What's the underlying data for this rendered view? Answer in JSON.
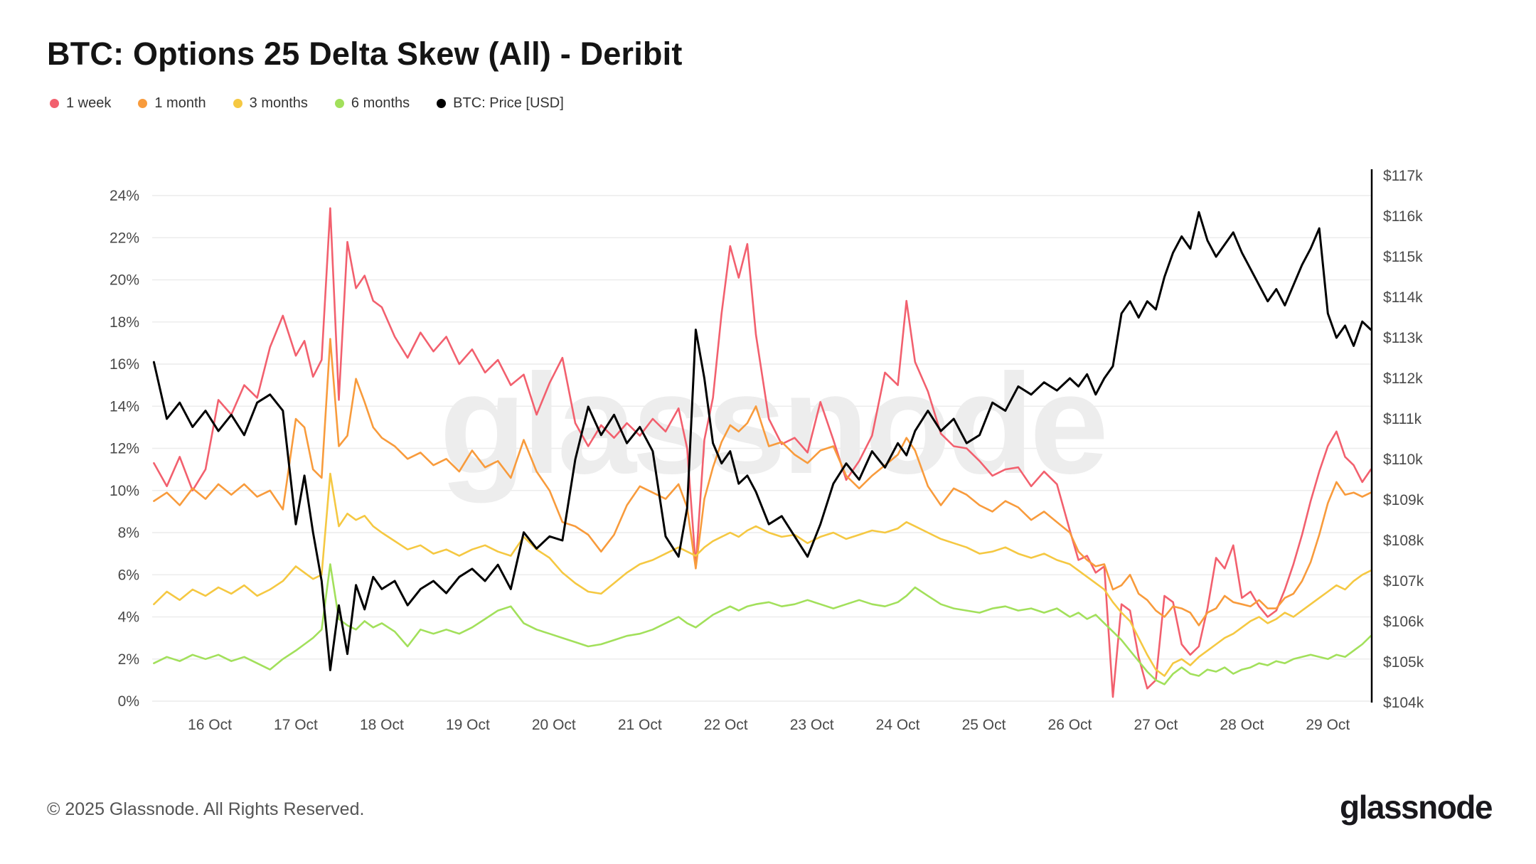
{
  "header": {
    "title": "BTC: Options 25 Delta Skew (All) - Deribit"
  },
  "legend": [
    {
      "label": "1 week",
      "color": "#F2606E"
    },
    {
      "label": "1 month",
      "color": "#F89B3C"
    },
    {
      "label": "3 months",
      "color": "#F5C842"
    },
    {
      "label": "6 months",
      "color": "#A2E05B"
    },
    {
      "label": "BTC: Price [USD]",
      "color": "#000000"
    }
  ],
  "watermark": "glassnode",
  "footer": {
    "copyright": "© 2025 Glassnode. All Rights Reserved.",
    "brand": "glassnode"
  },
  "chart_data": {
    "type": "line",
    "title": "BTC: Options 25 Delta Skew (All) - Deribit",
    "x_unit": "date (October 2025, fractional days)",
    "x_tick_days": [
      16,
      17,
      18,
      19,
      20,
      21,
      22,
      23,
      24,
      25,
      26,
      27,
      28,
      29
    ],
    "x_tick_labels": [
      "16 Oct",
      "17 Oct",
      "18 Oct",
      "19 Oct",
      "20 Oct",
      "21 Oct",
      "22 Oct",
      "23 Oct",
      "24 Oct",
      "25 Oct",
      "26 Oct",
      "27 Oct",
      "28 Oct",
      "29 Oct"
    ],
    "left_axis": {
      "min": 0,
      "max": 24,
      "step": 2,
      "unit": "%",
      "labels": [
        "0%",
        "2%",
        "4%",
        "6%",
        "8%",
        "10%",
        "12%",
        "14%",
        "16%",
        "18%",
        "20%",
        "22%",
        "24%"
      ]
    },
    "right_axis": {
      "min": 104,
      "max": 117,
      "step": 1,
      "unit": "$k",
      "labels": [
        "$104k",
        "$105k",
        "$106k",
        "$107k",
        "$108k",
        "$109k",
        "$110k",
        "$111k",
        "$112k",
        "$113k",
        "$114k",
        "$115k",
        "$116k",
        "$117k"
      ]
    },
    "grid": "horizontal-only",
    "legend_position": "top-left",
    "x": [
      15.35,
      15.5,
      15.65,
      15.8,
      15.95,
      16.1,
      16.25,
      16.4,
      16.55,
      16.7,
      16.85,
      17.0,
      17.1,
      17.2,
      17.3,
      17.4,
      17.5,
      17.6,
      17.7,
      17.8,
      17.9,
      18.0,
      18.15,
      18.3,
      18.45,
      18.6,
      18.75,
      18.9,
      19.05,
      19.2,
      19.35,
      19.5,
      19.65,
      19.8,
      19.95,
      20.1,
      20.25,
      20.4,
      20.55,
      20.7,
      20.85,
      21.0,
      21.15,
      21.3,
      21.45,
      21.55,
      21.65,
      21.75,
      21.85,
      21.95,
      22.05,
      22.15,
      22.25,
      22.35,
      22.5,
      22.65,
      22.8,
      22.95,
      23.1,
      23.25,
      23.4,
      23.55,
      23.7,
      23.85,
      24.0,
      24.1,
      24.2,
      24.35,
      24.5,
      24.65,
      24.8,
      24.95,
      25.1,
      25.25,
      25.4,
      25.55,
      25.7,
      25.85,
      26.0,
      26.1,
      26.2,
      26.3,
      26.4,
      26.5,
      26.6,
      26.7,
      26.8,
      26.9,
      27.0,
      27.1,
      27.2,
      27.3,
      27.4,
      27.5,
      27.6,
      27.7,
      27.8,
      27.9,
      28.0,
      28.1,
      28.2,
      28.3,
      28.4,
      28.5,
      28.6,
      28.7,
      28.8,
      28.9,
      29.0,
      29.1,
      29.2,
      29.3,
      29.4,
      29.5
    ],
    "series": [
      {
        "name": "1 week",
        "color": "#F2606E",
        "axis": "left",
        "unit": "%",
        "values": [
          11.3,
          10.2,
          11.6,
          10.0,
          11.0,
          14.3,
          13.6,
          15.0,
          14.4,
          16.8,
          18.3,
          16.4,
          17.1,
          15.4,
          16.2,
          23.4,
          14.3,
          21.8,
          19.6,
          20.2,
          19.0,
          18.7,
          17.3,
          16.3,
          17.5,
          16.6,
          17.3,
          16.0,
          16.7,
          15.6,
          16.2,
          15.0,
          15.5,
          13.6,
          15.1,
          16.3,
          13.2,
          12.1,
          13.1,
          12.5,
          13.2,
          12.6,
          13.4,
          12.8,
          13.9,
          12.0,
          6.4,
          12.4,
          14.4,
          18.4,
          21.6,
          20.1,
          21.7,
          17.4,
          13.4,
          12.2,
          12.5,
          11.8,
          14.2,
          12.4,
          10.5,
          11.4,
          12.6,
          15.6,
          15.0,
          19.0,
          16.1,
          14.7,
          12.7,
          12.1,
          12.0,
          11.4,
          10.7,
          11.0,
          11.1,
          10.2,
          10.9,
          10.3,
          8.1,
          6.7,
          6.9,
          6.1,
          6.4,
          0.2,
          4.6,
          4.3,
          2.1,
          0.6,
          1.0,
          5.0,
          4.7,
          2.7,
          2.2,
          2.6,
          4.4,
          6.8,
          6.3,
          7.4,
          4.9,
          5.2,
          4.5,
          4.0,
          4.3,
          5.3,
          6.5,
          7.9,
          9.5,
          10.9,
          12.1,
          12.8,
          11.6,
          11.2,
          10.4,
          11.0
        ]
      },
      {
        "name": "1 month",
        "color": "#F89B3C",
        "axis": "left",
        "unit": "%",
        "values": [
          9.5,
          9.9,
          9.3,
          10.1,
          9.6,
          10.3,
          9.8,
          10.3,
          9.7,
          10.0,
          9.1,
          13.4,
          13.0,
          11.0,
          10.6,
          17.2,
          12.1,
          12.6,
          15.3,
          14.2,
          13.0,
          12.5,
          12.1,
          11.5,
          11.8,
          11.2,
          11.5,
          10.9,
          11.9,
          11.1,
          11.4,
          10.6,
          12.4,
          10.9,
          10.0,
          8.5,
          8.3,
          7.9,
          7.1,
          7.9,
          9.3,
          10.2,
          9.9,
          9.6,
          10.3,
          9.2,
          6.3,
          9.6,
          11.1,
          12.3,
          13.1,
          12.8,
          13.2,
          14.0,
          12.1,
          12.3,
          11.7,
          11.3,
          11.9,
          12.1,
          10.7,
          10.1,
          10.7,
          11.2,
          11.7,
          12.5,
          11.9,
          10.2,
          9.3,
          10.1,
          9.8,
          9.3,
          9.0,
          9.5,
          9.2,
          8.6,
          9.0,
          8.5,
          8.0,
          7.1,
          6.7,
          6.4,
          6.5,
          5.3,
          5.5,
          6.0,
          5.1,
          4.8,
          4.3,
          4.0,
          4.5,
          4.4,
          4.2,
          3.6,
          4.2,
          4.4,
          5.0,
          4.7,
          4.6,
          4.5,
          4.8,
          4.4,
          4.4,
          4.9,
          5.1,
          5.7,
          6.6,
          7.9,
          9.4,
          10.4,
          9.8,
          9.9,
          9.7,
          9.9
        ]
      },
      {
        "name": "3 months",
        "color": "#F5C842",
        "axis": "left",
        "unit": "%",
        "values": [
          4.6,
          5.2,
          4.8,
          5.3,
          5.0,
          5.4,
          5.1,
          5.5,
          5.0,
          5.3,
          5.7,
          6.4,
          6.1,
          5.8,
          6.0,
          10.8,
          8.3,
          8.9,
          8.6,
          8.8,
          8.3,
          8.0,
          7.6,
          7.2,
          7.4,
          7.0,
          7.2,
          6.9,
          7.2,
          7.4,
          7.1,
          6.9,
          7.8,
          7.2,
          6.8,
          6.1,
          5.6,
          5.2,
          5.1,
          5.6,
          6.1,
          6.5,
          6.7,
          7.0,
          7.3,
          7.1,
          6.9,
          7.3,
          7.6,
          7.8,
          8.0,
          7.8,
          8.1,
          8.3,
          8.0,
          7.8,
          7.9,
          7.5,
          7.8,
          8.0,
          7.7,
          7.9,
          8.1,
          8.0,
          8.2,
          8.5,
          8.3,
          8.0,
          7.7,
          7.5,
          7.3,
          7.0,
          7.1,
          7.3,
          7.0,
          6.8,
          7.0,
          6.7,
          6.5,
          6.2,
          5.9,
          5.6,
          5.3,
          4.7,
          4.2,
          3.8,
          3.0,
          2.2,
          1.5,
          1.2,
          1.8,
          2.0,
          1.7,
          2.1,
          2.4,
          2.7,
          3.0,
          3.2,
          3.5,
          3.8,
          4.0,
          3.7,
          3.9,
          4.2,
          4.0,
          4.3,
          4.6,
          4.9,
          5.2,
          5.5,
          5.3,
          5.7,
          6.0,
          6.2
        ]
      },
      {
        "name": "6 months",
        "color": "#A2E05B",
        "axis": "left",
        "unit": "%",
        "values": [
          1.8,
          2.1,
          1.9,
          2.2,
          2.0,
          2.2,
          1.9,
          2.1,
          1.8,
          1.5,
          2.0,
          2.4,
          2.7,
          3.0,
          3.4,
          6.5,
          3.9,
          3.6,
          3.4,
          3.8,
          3.5,
          3.7,
          3.3,
          2.6,
          3.4,
          3.2,
          3.4,
          3.2,
          3.5,
          3.9,
          4.3,
          4.5,
          3.7,
          3.4,
          3.2,
          3.0,
          2.8,
          2.6,
          2.7,
          2.9,
          3.1,
          3.2,
          3.4,
          3.7,
          4.0,
          3.7,
          3.5,
          3.8,
          4.1,
          4.3,
          4.5,
          4.3,
          4.5,
          4.6,
          4.7,
          4.5,
          4.6,
          4.8,
          4.6,
          4.4,
          4.6,
          4.8,
          4.6,
          4.5,
          4.7,
          5.0,
          5.4,
          5.0,
          4.6,
          4.4,
          4.3,
          4.2,
          4.4,
          4.5,
          4.3,
          4.4,
          4.2,
          4.4,
          4.0,
          4.2,
          3.9,
          4.1,
          3.7,
          3.3,
          2.9,
          2.4,
          1.9,
          1.4,
          1.0,
          0.8,
          1.3,
          1.6,
          1.3,
          1.2,
          1.5,
          1.4,
          1.6,
          1.3,
          1.5,
          1.6,
          1.8,
          1.7,
          1.9,
          1.8,
          2.0,
          2.1,
          2.2,
          2.1,
          2.0,
          2.2,
          2.1,
          2.4,
          2.7,
          3.1
        ]
      },
      {
        "name": "BTC: Price [USD]",
        "color": "#000000",
        "axis": "right",
        "unit": "$k",
        "values": [
          112.4,
          111.0,
          111.4,
          110.8,
          111.2,
          110.7,
          111.1,
          110.6,
          111.4,
          111.6,
          111.2,
          108.4,
          109.6,
          108.2,
          107.0,
          104.8,
          106.4,
          105.2,
          106.9,
          106.3,
          107.1,
          106.8,
          107.0,
          106.4,
          106.8,
          107.0,
          106.7,
          107.1,
          107.3,
          107.0,
          107.4,
          106.8,
          108.2,
          107.8,
          108.1,
          108.0,
          110.0,
          111.3,
          110.6,
          111.1,
          110.4,
          110.8,
          110.2,
          108.1,
          107.6,
          108.8,
          113.2,
          112.0,
          110.4,
          109.9,
          110.2,
          109.4,
          109.6,
          109.2,
          108.4,
          108.6,
          108.1,
          107.6,
          108.4,
          109.4,
          109.9,
          109.5,
          110.2,
          109.8,
          110.4,
          110.1,
          110.7,
          111.2,
          110.7,
          111.0,
          110.4,
          110.6,
          111.4,
          111.2,
          111.8,
          111.6,
          111.9,
          111.7,
          112.0,
          111.8,
          112.1,
          111.6,
          112.0,
          112.3,
          113.6,
          113.9,
          113.5,
          113.9,
          113.7,
          114.5,
          115.1,
          115.5,
          115.2,
          116.1,
          115.4,
          115.0,
          115.3,
          115.6,
          115.1,
          114.7,
          114.3,
          113.9,
          114.2,
          113.8,
          114.3,
          114.8,
          115.2,
          115.7,
          113.6,
          113.0,
          113.3,
          112.8,
          113.4,
          113.2
        ]
      }
    ]
  }
}
